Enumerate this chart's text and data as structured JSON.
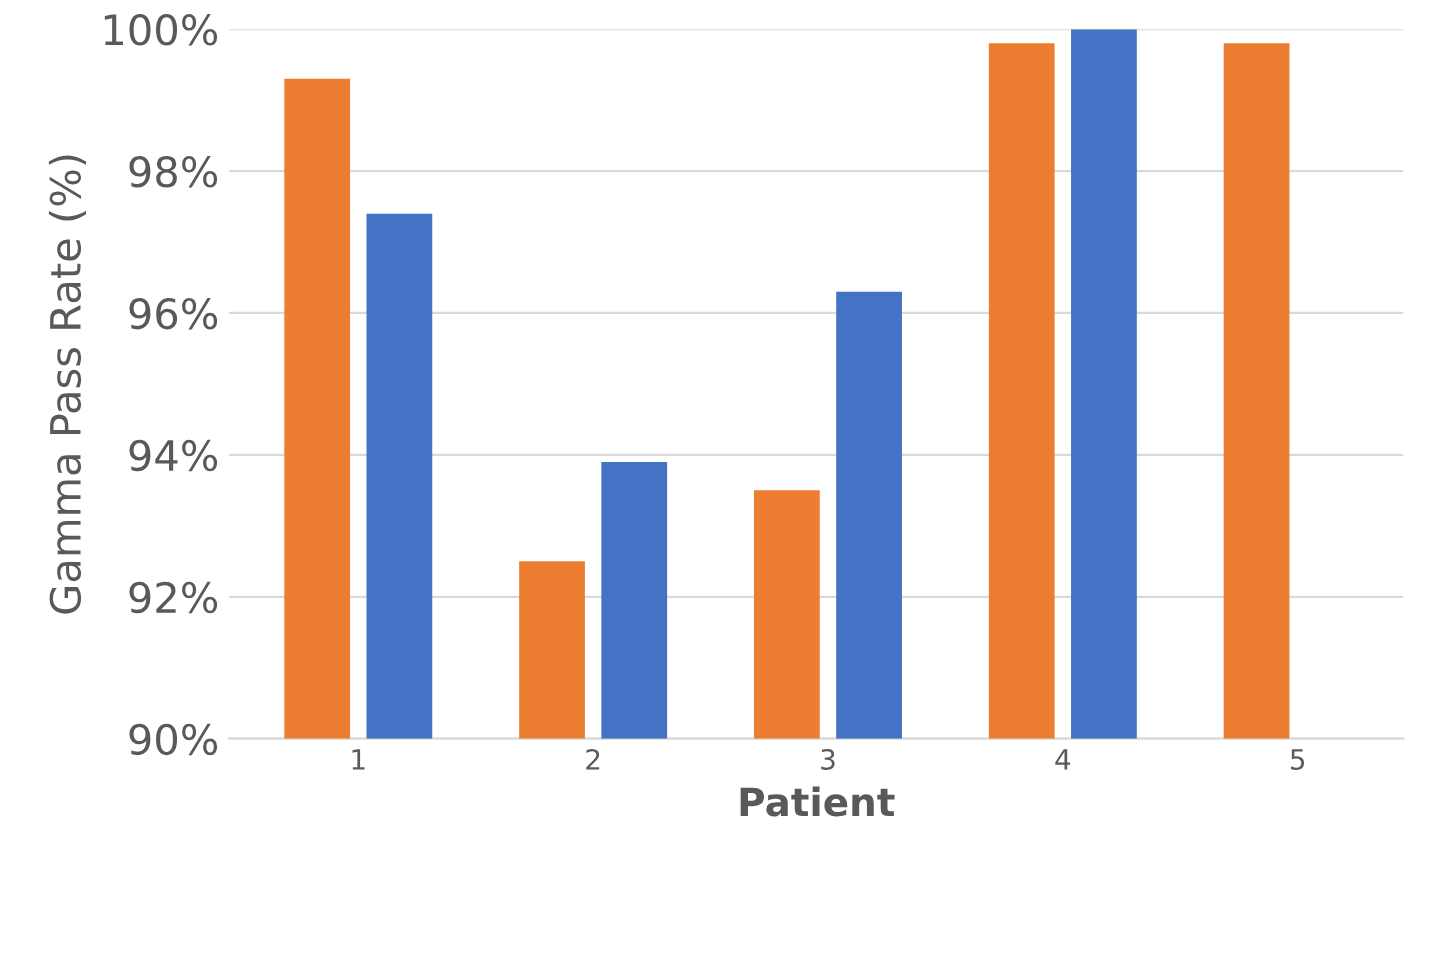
{
  "chart_data": {
    "type": "bar",
    "xlabel": "Patient",
    "ylabel": "Gamma Pass Rate (%)",
    "categories": [
      "1",
      "2",
      "3",
      "4",
      "5"
    ],
    "series": [
      {
        "color": "#ed7d31",
        "values": [
          99.3,
          92.5,
          93.5,
          99.8,
          99.8
        ]
      },
      {
        "color": "#4472c4",
        "values": [
          97.4,
          93.9,
          96.3,
          100,
          null
        ]
      }
    ],
    "ylim": [
      90,
      100
    ],
    "yticks": [
      {
        "value": 90,
        "label": "90%"
      },
      {
        "value": 92,
        "label": "92%"
      },
      {
        "value": 94,
        "label": "94%"
      },
      {
        "value": 96,
        "label": "96%"
      },
      {
        "value": 98,
        "label": "98%"
      },
      {
        "value": 100,
        "label": "100%"
      }
    ],
    "grid": "y"
  }
}
